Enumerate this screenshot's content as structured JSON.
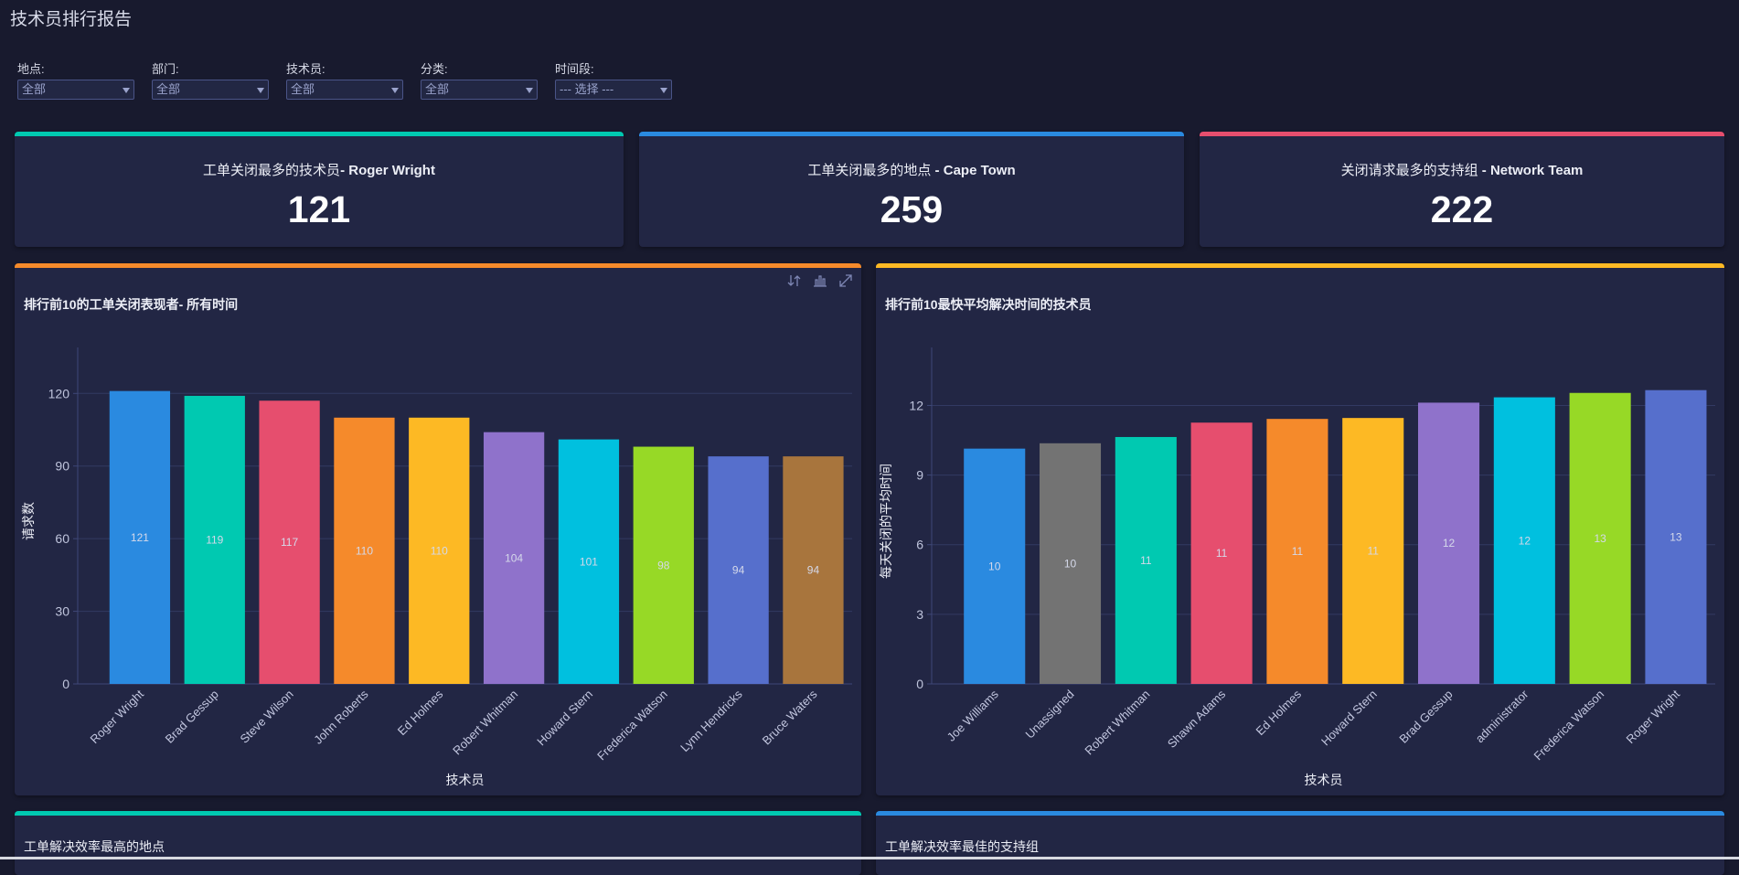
{
  "page": {
    "title": "技术员排行报告"
  },
  "filters": [
    {
      "label": "地点:",
      "value": "全部"
    },
    {
      "label": "部门:",
      "value": "全部"
    },
    {
      "label": "技术员:",
      "value": "全部"
    },
    {
      "label": "分类:",
      "value": "全部"
    },
    {
      "label": "时间段:",
      "value": "--- 选择 ---"
    }
  ],
  "kpis": [
    {
      "title": "工单关闭最多的技术员",
      "sep": "- ",
      "highlight": "Roger Wright",
      "value": "121",
      "color": "#00c9b1"
    },
    {
      "title": "工单关闭最多的地点",
      "sep": " - ",
      "highlight": "Cape Town",
      "value": "259",
      "color": "#2a8ae0"
    },
    {
      "title": "关闭请求最多的支持组",
      "sep": " - ",
      "highlight": "Network Team",
      "value": "222",
      "color": "#e64e6e"
    }
  ],
  "panels": {
    "top_closers": {
      "title": "排行前10的工单关闭表现者- 所有时间",
      "color": "#f58a2b",
      "tools": [
        "sort-icon",
        "bar-chart-icon",
        "expand-icon"
      ]
    },
    "fastest": {
      "title": "排行前10最快平均解决时间的技术员",
      "color": "#fdb924"
    },
    "best_location": {
      "title": "工单解决效率最高的地点",
      "color": "#00c9b1"
    },
    "best_group": {
      "title": "工单解决效率最佳的支持组",
      "color": "#2a8ae0"
    }
  },
  "chart_data": [
    {
      "type": "bar",
      "title": "排行前10的工单关闭表现者- 所有时间",
      "xlabel": "技术员",
      "ylabel": "请求数",
      "ylim": [
        0,
        139
      ],
      "yticks": [
        0,
        30,
        60,
        90,
        120
      ],
      "grid": true,
      "categories": [
        "Roger Wright",
        "Brad Gessup",
        "Steve Wilson",
        "John Roberts",
        "Ed Holmes",
        "Robert Whitman",
        "Howard Stern",
        "Frederica Watson",
        "Lynn Hendricks",
        "Bruce Waters"
      ],
      "values": [
        121,
        119,
        117,
        110,
        110,
        104,
        101,
        98,
        94,
        94
      ],
      "labels": [
        "121",
        "119",
        "117",
        "110",
        "110",
        "104",
        "101",
        "98",
        "94",
        "94"
      ],
      "colors": [
        "#2a8ae0",
        "#00c9b1",
        "#e64e6e",
        "#f58a2b",
        "#fdb924",
        "#8f72cb",
        "#00c0df",
        "#97d926",
        "#566fcc",
        "#a8753d"
      ]
    },
    {
      "type": "bar",
      "title": "排行前10最快平均解决时间的技术员",
      "xlabel": "技术员",
      "ylabel": "每天关闭的平均时间",
      "ylim": [
        0,
        14.5
      ],
      "yticks": [
        0,
        3,
        6,
        9,
        12
      ],
      "grid": true,
      "categories": [
        "Joe Williams",
        "Unassigned",
        "Robert Whitman",
        "Shawn Adams",
        "Ed Holmes",
        "Howard Stern",
        "Brad Gessup",
        "administrator",
        "Frederica Watson",
        "Roger Wright"
      ],
      "values": [
        10.14,
        10.37,
        10.64,
        11.26,
        11.42,
        11.46,
        12.12,
        12.35,
        12.54,
        12.66
      ],
      "labels": [
        "10",
        "10",
        "11",
        "11",
        "11",
        "11",
        "12",
        "12",
        "13",
        "13"
      ],
      "colors": [
        "#2a8ae0",
        "#737373",
        "#00c9b1",
        "#e64e6e",
        "#f58a2b",
        "#fdb924",
        "#8f72cb",
        "#00c0df",
        "#97d926",
        "#566fcc"
      ]
    }
  ]
}
